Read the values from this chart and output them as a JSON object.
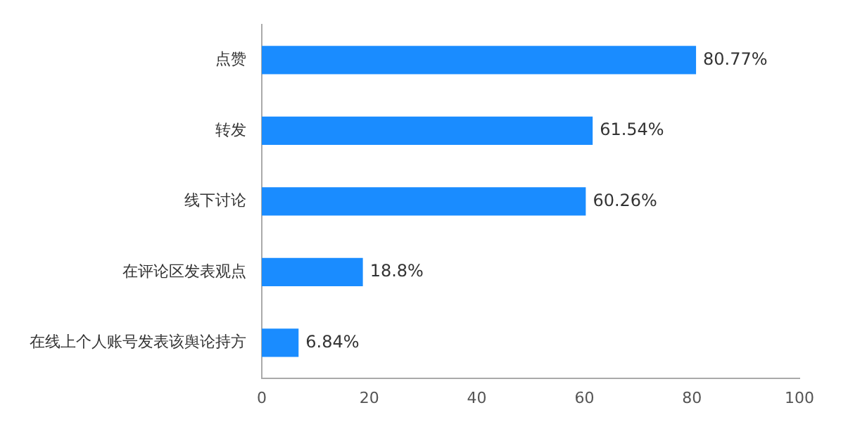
{
  "chart_data": {
    "type": "bar",
    "orientation": "horizontal",
    "categories": [
      "点赞",
      "转发",
      "线下讨论",
      "在评论区发表观点",
      "在线上个人账号发表该舆论持方"
    ],
    "values": [
      80.77,
      61.54,
      60.26,
      18.8,
      6.84
    ],
    "value_labels": [
      "80.77%",
      "61.54%",
      "60.26%",
      "18.8%",
      "6.84%"
    ],
    "color": "#1a8cff",
    "xlim": [
      0,
      100
    ],
    "xticks": [
      0,
      20,
      40,
      60,
      80,
      100
    ],
    "grid": false,
    "legend": false
  }
}
